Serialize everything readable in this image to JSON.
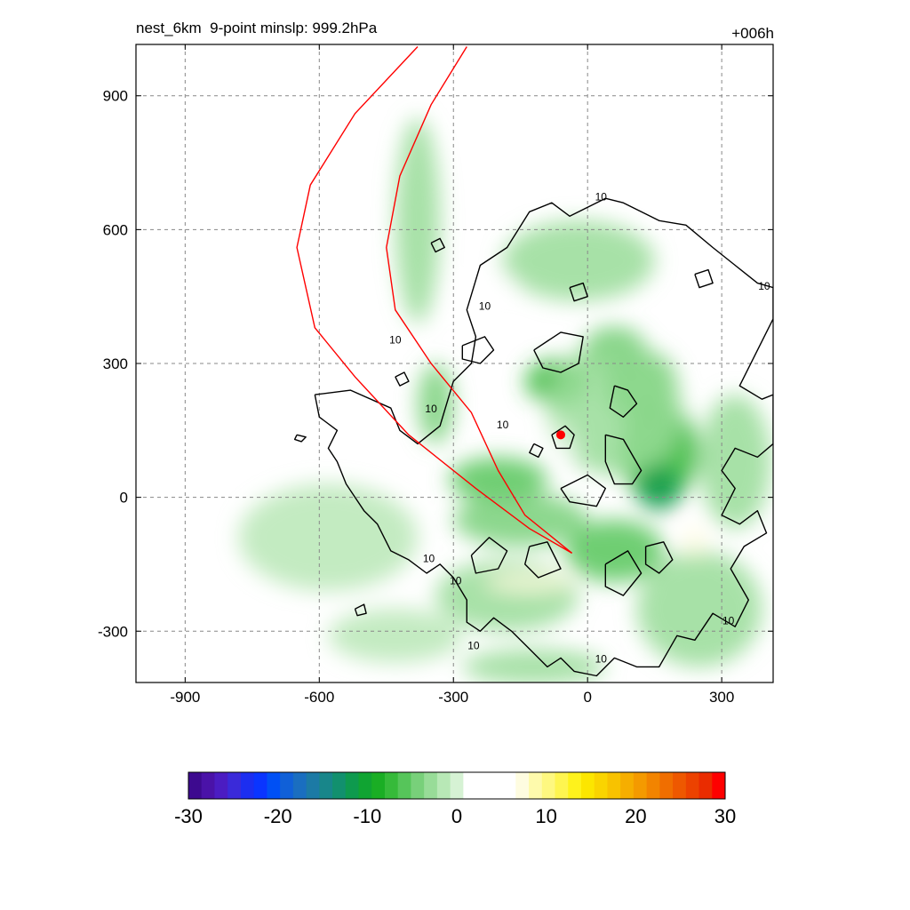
{
  "header": {
    "left_title": "nest_6km  9-point minslp: 999.2hPa",
    "right_title": "+006h"
  },
  "chart_data": {
    "type": "heatmap",
    "xlim": [
      -1010,
      415
    ],
    "ylim": [
      -415,
      1015
    ],
    "x_ticks": [
      -900,
      -600,
      -300,
      0,
      300
    ],
    "y_ticks": [
      900,
      600,
      300,
      0,
      -300
    ],
    "x_tick_labels": [
      "-900",
      "-600",
      "-300",
      "0",
      "300"
    ],
    "y_tick_labels": [
      "900",
      "600",
      "300",
      "0",
      "-300"
    ],
    "grid": true,
    "colorbar": {
      "min": -30,
      "max": 30,
      "ticks": [
        -30,
        -20,
        -10,
        0,
        10,
        20,
        30
      ],
      "tick_labels": [
        "-30",
        "-20",
        "-10",
        "0",
        "10",
        "20",
        "30"
      ],
      "colors": [
        "#3d0a8f",
        "#4a12a8",
        "#4b1cc2",
        "#3a2ad9",
        "#1c2ef0",
        "#0a35ff",
        "#0050f5",
        "#1060d8",
        "#1a6ec0",
        "#1c7aa5",
        "#18868a",
        "#12906e",
        "#0e9a4e",
        "#10a432",
        "#1aae24",
        "#36ba3a",
        "#56c55a",
        "#78d07a",
        "#98dc98",
        "#b8e8b6",
        "#d6f2d4",
        "#ffffff",
        "#ffffff",
        "#ffffff",
        "#ffffff",
        "#fefce0",
        "#fefaac",
        "#fef880",
        "#fef550",
        "#fef21c",
        "#fce600",
        "#fad400",
        "#f8c200",
        "#f6ae00",
        "#f49a00",
        "#f28400",
        "#f06e00",
        "#ee5800",
        "#ec4200",
        "#ea2c00",
        "#fe0000"
      ]
    },
    "contour_level": 10,
    "contour_labels": [
      {
        "x": -230,
        "y": 420,
        "text": "10"
      },
      {
        "x": -430,
        "y": 345,
        "text": "10"
      },
      {
        "x": -350,
        "y": 190,
        "text": "10"
      },
      {
        "x": -190,
        "y": 155,
        "text": "10"
      },
      {
        "x": 30,
        "y": 665,
        "text": "10"
      },
      {
        "x": 395,
        "y": 465,
        "text": "10"
      },
      {
        "x": -355,
        "y": -145,
        "text": "10"
      },
      {
        "x": -295,
        "y": -195,
        "text": "10"
      },
      {
        "x": -255,
        "y": -340,
        "text": "10"
      },
      {
        "x": 30,
        "y": -370,
        "text": "10"
      },
      {
        "x": 315,
        "y": -285,
        "text": "10"
      }
    ],
    "center_marker": {
      "x": -60,
      "y": 140,
      "color": "#ff0000"
    },
    "red_lines": [
      {
        "name": "",
        "color": "#ff0000",
        "points": [
          [
            -380,
            1010
          ],
          [
            -520,
            860
          ],
          [
            -620,
            700
          ],
          [
            -650,
            560
          ],
          [
            -610,
            380
          ],
          [
            -520,
            270
          ],
          [
            -400,
            140
          ],
          [
            -250,
            20
          ],
          [
            -130,
            -70
          ],
          [
            -35,
            -125
          ]
        ]
      },
      {
        "name": "",
        "color": "#ff0000",
        "points": [
          [
            -270,
            1010
          ],
          [
            -350,
            880
          ],
          [
            -420,
            720
          ],
          [
            -450,
            560
          ],
          [
            -430,
            420
          ],
          [
            -350,
            300
          ],
          [
            -260,
            190
          ],
          [
            -200,
            60
          ],
          [
            -140,
            -40
          ],
          [
            -35,
            -125
          ]
        ]
      }
    ],
    "shading_blobs": [
      {
        "x": 60,
        "y": 330,
        "rx": 70,
        "ry": 50,
        "value": -6
      },
      {
        "x": 120,
        "y": 250,
        "rx": 80,
        "ry": 80,
        "value": -7
      },
      {
        "x": 160,
        "y": 100,
        "rx": 90,
        "ry": 110,
        "value": -8
      },
      {
        "x": 160,
        "y": 20,
        "rx": 50,
        "ry": 50,
        "value": -12
      },
      {
        "x": -70,
        "y": 260,
        "rx": 70,
        "ry": 50,
        "value": -7
      },
      {
        "x": -200,
        "y": 40,
        "rx": 110,
        "ry": 50,
        "value": -6
      },
      {
        "x": -340,
        "y": 210,
        "rx": 40,
        "ry": 90,
        "value": -5
      },
      {
        "x": -150,
        "y": -50,
        "rx": 150,
        "ry": 60,
        "value": -5
      },
      {
        "x": 60,
        "y": -120,
        "rx": 110,
        "ry": 70,
        "value": -6
      },
      {
        "x": 250,
        "y": -250,
        "rx": 140,
        "ry": 130,
        "value": -3
      },
      {
        "x": 330,
        "y": 80,
        "rx": 80,
        "ry": 150,
        "value": -3
      },
      {
        "x": -380,
        "y": 620,
        "rx": 50,
        "ry": 230,
        "value": -3
      },
      {
        "x": -20,
        "y": 530,
        "rx": 170,
        "ry": 90,
        "value": -3
      },
      {
        "x": -180,
        "y": -220,
        "rx": 160,
        "ry": 80,
        "value": -3
      },
      {
        "x": -120,
        "y": -380,
        "rx": 160,
        "ry": 40,
        "value": -3
      },
      {
        "x": -580,
        "y": -90,
        "rx": 200,
        "ry": 120,
        "value": -2
      },
      {
        "x": -430,
        "y": -310,
        "rx": 150,
        "ry": 60,
        "value": -2
      },
      {
        "x": 60,
        "y": 200,
        "rx": 150,
        "ry": 150,
        "value": -3
      },
      {
        "x": -130,
        "y": -190,
        "rx": 100,
        "ry": 22,
        "value": 8
      },
      {
        "x": 240,
        "y": -100,
        "rx": 25,
        "ry": 35,
        "value": 8
      },
      {
        "x": -280,
        "y": 450,
        "rx": 12,
        "ry": 25,
        "value": 6
      },
      {
        "x": -175,
        "y": 480,
        "rx": 20,
        "ry": 12,
        "value": 6
      },
      {
        "x": -40,
        "y": 110,
        "rx": 15,
        "ry": 20,
        "value": 6
      },
      {
        "x": -60,
        "y": 150,
        "rx": 25,
        "ry": 25,
        "value": 0
      }
    ],
    "contours": [
      [
        [
          -610,
          230
        ],
        [
          -530,
          240
        ],
        [
          -440,
          200
        ],
        [
          -420,
          150
        ],
        [
          -380,
          120
        ],
        [
          -330,
          160
        ],
        [
          -300,
          260
        ],
        [
          -260,
          300
        ],
        [
          -250,
          360
        ],
        [
          -270,
          420
        ],
        [
          -240,
          520
        ],
        [
          -180,
          560
        ],
        [
          -130,
          640
        ],
        [
          -80,
          660
        ],
        [
          -40,
          630
        ],
        [
          0,
          650
        ],
        [
          40,
          670
        ],
        [
          80,
          660
        ],
        [
          120,
          640
        ],
        [
          160,
          620
        ],
        [
          220,
          610
        ],
        [
          280,
          560
        ],
        [
          330,
          520
        ],
        [
          380,
          480
        ],
        [
          415,
          470
        ],
        [
          415,
          400
        ],
        [
          380,
          330
        ],
        [
          340,
          250
        ],
        [
          390,
          220
        ],
        [
          415,
          230
        ],
        [
          415,
          120
        ],
        [
          380,
          90
        ],
        [
          330,
          110
        ],
        [
          300,
          60
        ],
        [
          330,
          20
        ],
        [
          300,
          -40
        ],
        [
          340,
          -60
        ],
        [
          380,
          -30
        ],
        [
          400,
          -80
        ],
        [
          350,
          -110
        ],
        [
          320,
          -160
        ],
        [
          360,
          -230
        ],
        [
          330,
          -290
        ],
        [
          280,
          -260
        ],
        [
          240,
          -320
        ],
        [
          200,
          -310
        ],
        [
          160,
          -380
        ],
        [
          110,
          -380
        ],
        [
          60,
          -360
        ],
        [
          20,
          -400
        ],
        [
          -30,
          -390
        ],
        [
          -60,
          -360
        ],
        [
          -90,
          -380
        ],
        [
          -130,
          -340
        ],
        [
          -170,
          -300
        ],
        [
          -210,
          -270
        ],
        [
          -240,
          -300
        ],
        [
          -270,
          -280
        ],
        [
          -270,
          -230
        ],
        [
          -300,
          -180
        ],
        [
          -330,
          -150
        ],
        [
          -360,
          -170
        ],
        [
          -400,
          -140
        ],
        [
          -440,
          -120
        ],
        [
          -470,
          -60
        ],
        [
          -500,
          -30
        ],
        [
          -540,
          30
        ],
        [
          -560,
          80
        ],
        [
          -580,
          110
        ],
        [
          -560,
          150
        ],
        [
          -600,
          180
        ],
        [
          -610,
          230
        ]
      ],
      [
        [
          -120,
          330
        ],
        [
          -60,
          370
        ],
        [
          -10,
          360
        ],
        [
          -20,
          300
        ],
        [
          -60,
          280
        ],
        [
          -100,
          290
        ],
        [
          -120,
          330
        ]
      ],
      [
        [
          60,
          250
        ],
        [
          90,
          240
        ],
        [
          110,
          210
        ],
        [
          80,
          180
        ],
        [
          50,
          200
        ],
        [
          60,
          250
        ]
      ],
      [
        [
          40,
          140
        ],
        [
          80,
          130
        ],
        [
          120,
          60
        ],
        [
          100,
          30
        ],
        [
          60,
          30
        ],
        [
          40,
          80
        ],
        [
          40,
          140
        ]
      ],
      [
        [
          -60,
          20
        ],
        [
          0,
          50
        ],
        [
          40,
          20
        ],
        [
          20,
          -20
        ],
        [
          -40,
          -10
        ],
        [
          -60,
          20
        ]
      ],
      [
        [
          -80,
          140
        ],
        [
          -50,
          160
        ],
        [
          -30,
          140
        ],
        [
          -40,
          110
        ],
        [
          -70,
          110
        ],
        [
          -80,
          140
        ]
      ],
      [
        [
          -120,
          120
        ],
        [
          -100,
          110
        ],
        [
          -110,
          90
        ],
        [
          -130,
          100
        ],
        [
          -120,
          120
        ]
      ],
      [
        [
          -280,
          340
        ],
        [
          -230,
          360
        ],
        [
          -210,
          330
        ],
        [
          -240,
          300
        ],
        [
          -280,
          310
        ],
        [
          -280,
          340
        ]
      ],
      [
        [
          -260,
          -130
        ],
        [
          -220,
          -90
        ],
        [
          -180,
          -120
        ],
        [
          -200,
          -160
        ],
        [
          -250,
          -170
        ],
        [
          -260,
          -130
        ]
      ],
      [
        [
          -130,
          -110
        ],
        [
          -90,
          -100
        ],
        [
          -60,
          -160
        ],
        [
          -110,
          -180
        ],
        [
          -140,
          -150
        ],
        [
          -130,
          -110
        ]
      ],
      [
        [
          40,
          -150
        ],
        [
          90,
          -120
        ],
        [
          120,
          -170
        ],
        [
          80,
          -220
        ],
        [
          40,
          -200
        ],
        [
          40,
          -150
        ]
      ],
      [
        [
          130,
          -110
        ],
        [
          170,
          -100
        ],
        [
          190,
          -140
        ],
        [
          160,
          -170
        ],
        [
          130,
          -150
        ],
        [
          130,
          -110
        ]
      ],
      [
        [
          -40,
          470
        ],
        [
          -10,
          480
        ],
        [
          0,
          450
        ],
        [
          -30,
          440
        ],
        [
          -40,
          470
        ]
      ],
      [
        [
          240,
          500
        ],
        [
          270,
          510
        ],
        [
          280,
          480
        ],
        [
          250,
          470
        ],
        [
          240,
          500
        ]
      ],
      [
        [
          -650,
          140
        ],
        [
          -630,
          135
        ],
        [
          -640,
          125
        ],
        [
          -655,
          130
        ],
        [
          -650,
          140
        ]
      ],
      [
        [
          -430,
          270
        ],
        [
          -410,
          280
        ],
        [
          -400,
          260
        ],
        [
          -420,
          250
        ],
        [
          -430,
          270
        ]
      ],
      [
        [
          -350,
          570
        ],
        [
          -330,
          580
        ],
        [
          -320,
          560
        ],
        [
          -340,
          550
        ],
        [
          -350,
          570
        ]
      ],
      [
        [
          -520,
          -250
        ],
        [
          -500,
          -240
        ],
        [
          -495,
          -260
        ],
        [
          -515,
          -265
        ],
        [
          -520,
          -250
        ]
      ]
    ]
  }
}
